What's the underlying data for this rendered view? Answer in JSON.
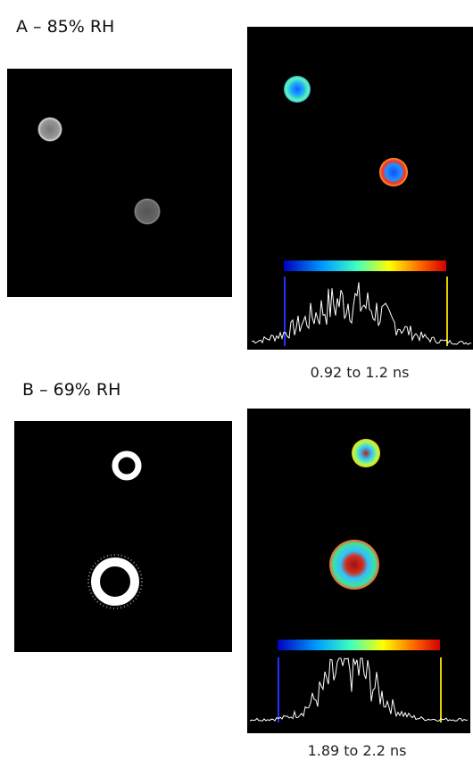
{
  "panels": [
    {
      "label": "A – 85% RH",
      "range": "0.92 to 1.2 ns"
    },
    {
      "label": "B – 69% RH",
      "range": "1.89 to 2.2 ns"
    }
  ]
}
